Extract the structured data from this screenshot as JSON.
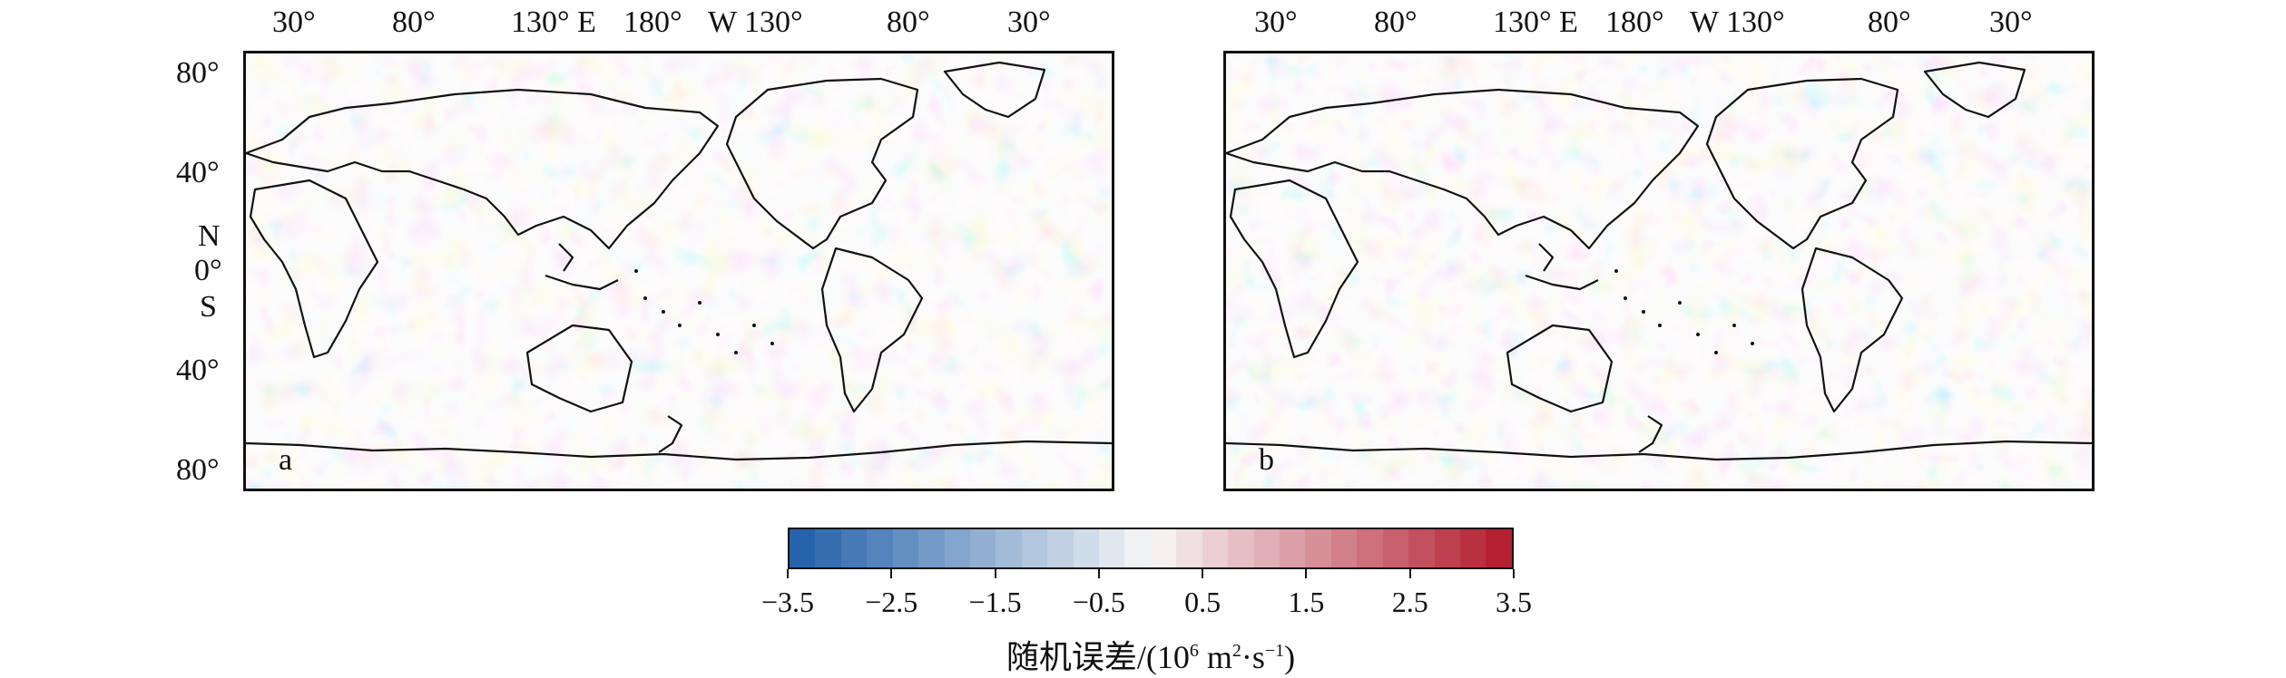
{
  "top_axis": {
    "ticks_a": [
      "30°",
      "80°",
      "130° E",
      "180°",
      "W 130°",
      "80°",
      "30°"
    ],
    "ticks_b": [
      "30°",
      "80°",
      "130° E",
      "180°",
      "W 130°",
      "80°",
      "30°"
    ]
  },
  "left_axis": {
    "lat_80n": "80°",
    "lat_40n": "40°",
    "hemisphere_n": "N",
    "lat_0": "0°",
    "hemisphere_s": "S",
    "lat_40s": "40°",
    "lat_80s": "80°"
  },
  "panels": {
    "a": {
      "label": "a"
    },
    "b": {
      "label": "b"
    }
  },
  "colorbar": {
    "range": [
      -3.5,
      3.5
    ],
    "low_color": "#1f5ea8",
    "mid_color": "#f7f7f7",
    "high_color": "#b2182b",
    "tick_labels": [
      "−3.5",
      "−2.5",
      "−1.5",
      "−0.5",
      "0.5",
      "1.5",
      "2.5",
      "3.5"
    ],
    "title_text": "随机误差/(10",
    "title_exp1": "6",
    "title_unit_m": " m",
    "title_exp2": "2",
    "title_unit_s": "·s",
    "title_exp3": "−1",
    "title_close": ")"
  }
}
